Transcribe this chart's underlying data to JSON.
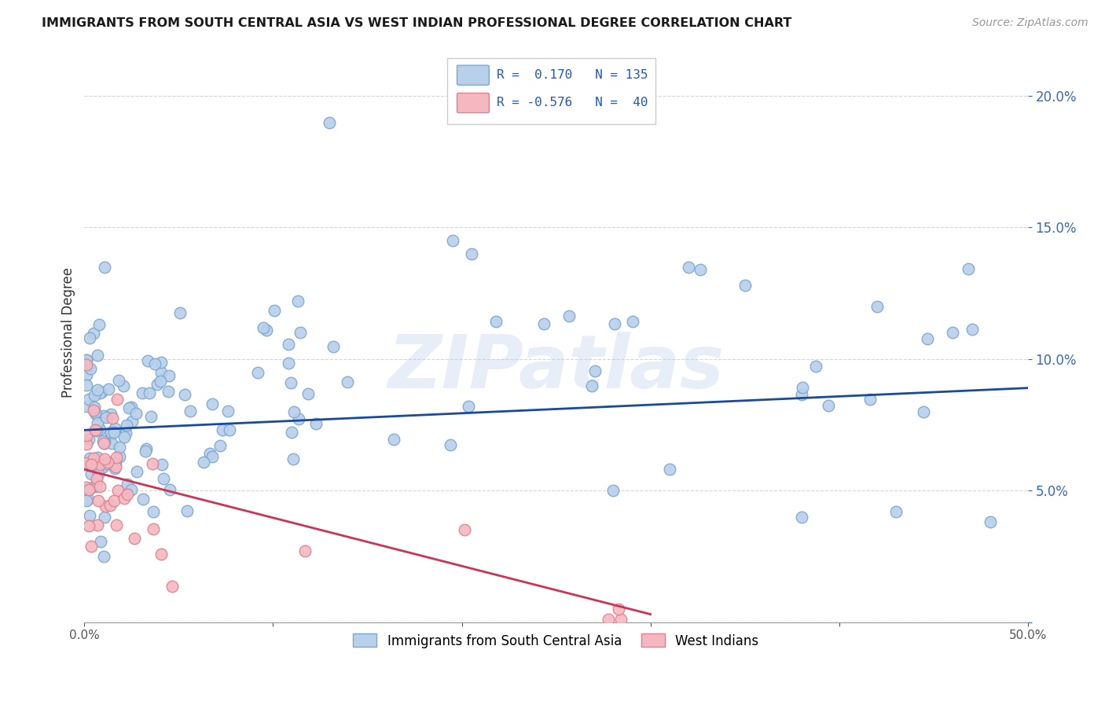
{
  "title": "IMMIGRANTS FROM SOUTH CENTRAL ASIA VS WEST INDIAN PROFESSIONAL DEGREE CORRELATION CHART",
  "source": "Source: ZipAtlas.com",
  "ylabel": "Professional Degree",
  "x_min": 0.0,
  "x_max": 0.5,
  "y_min": 0.0,
  "y_max": 0.22,
  "x_ticks": [
    0.0,
    0.1,
    0.2,
    0.3,
    0.4,
    0.5
  ],
  "x_tick_labels": [
    "0.0%",
    "",
    "",
    "",
    "",
    "50.0%"
  ],
  "y_ticks": [
    0.0,
    0.05,
    0.1,
    0.15,
    0.2
  ],
  "y_tick_labels": [
    "",
    "5.0%",
    "10.0%",
    "15.0%",
    "20.0%"
  ],
  "blue_color": "#b8d0ea",
  "blue_edge_color": "#7aA8d0",
  "pink_color": "#f5b8c0",
  "pink_edge_color": "#e08090",
  "blue_line_color": "#1a4a9a",
  "pink_line_color": "#cc3355",
  "legend_R_blue": "0.170",
  "legend_N_blue": "135",
  "legend_R_pink": "-0.576",
  "legend_N_pink": "40",
  "legend_label_blue": "Immigrants from South Central Asia",
  "legend_label_pink": "West Indians",
  "watermark": "ZIPatlas",
  "blue_R": 0.17,
  "pink_R": -0.576,
  "blue_line_x0": 0.0,
  "blue_line_y0": 0.073,
  "blue_line_x1": 0.5,
  "blue_line_y1": 0.089,
  "pink_line_x0": 0.0,
  "pink_line_y0": 0.058,
  "pink_line_x1": 0.3,
  "pink_line_y1": 0.003
}
